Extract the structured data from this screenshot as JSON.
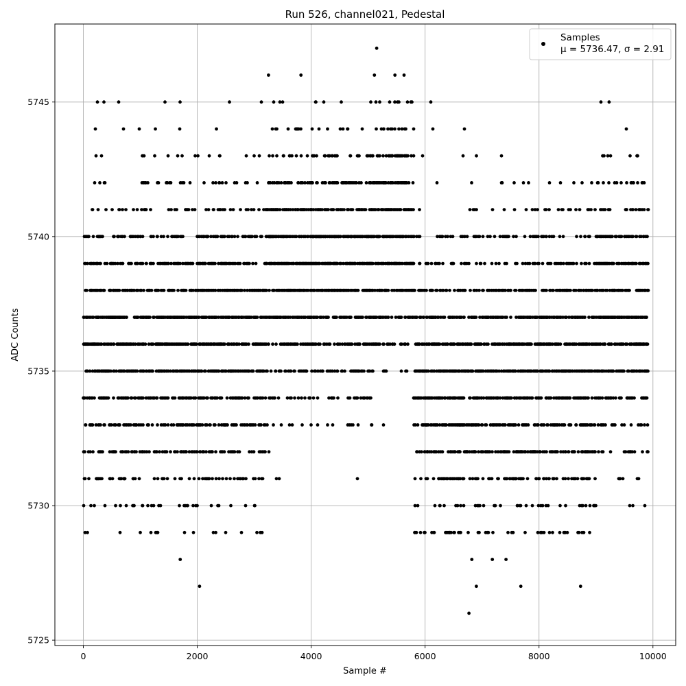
{
  "chart_data": {
    "type": "scatter",
    "title": "Run 526, channel021, Pedestal",
    "xlabel": "Sample #",
    "ylabel": "ADC Counts",
    "xlim": [
      -500,
      10400
    ],
    "ylim": [
      5724.8,
      5747.9
    ],
    "xticks": [
      0,
      2000,
      4000,
      6000,
      8000,
      10000
    ],
    "yticks": [
      5725,
      5730,
      5735,
      5740,
      5745
    ],
    "grid": true,
    "legend_position": "top-right",
    "series": [
      {
        "name": "Samples",
        "color": "#000000",
        "marker": "circle",
        "n_points": 10000
      }
    ],
    "legend": {
      "label": "Samples",
      "stats": "μ = 5736.47, σ = 2.91"
    },
    "segments": [
      {
        "x_range": [
          0,
          3200
        ],
        "mean": 5736.0,
        "sigma": 2.9
      },
      {
        "x_range": [
          3200,
          5100
        ],
        "mean": 5738.5,
        "sigma": 2.6
      },
      {
        "x_range": [
          5100,
          5800
        ],
        "mean": 5739.8,
        "sigma": 2.5
      },
      {
        "x_range": [
          5800,
          9000
        ],
        "mean": 5735.0,
        "sigma": 2.9
      },
      {
        "x_range": [
          9000,
          9920
        ],
        "mean": 5737.0,
        "sigma": 2.8
      }
    ],
    "outliers": [
      {
        "x": 5150,
        "y": 5747
      },
      {
        "x": 3250,
        "y": 5746
      },
      {
        "x": 3820,
        "y": 5746
      },
      {
        "x": 5110,
        "y": 5746
      },
      {
        "x": 5470,
        "y": 5746
      },
      {
        "x": 5630,
        "y": 5746
      },
      {
        "x": 620,
        "y": 5745
      },
      {
        "x": 9230,
        "y": 5745
      },
      {
        "x": 1700,
        "y": 5728
      },
      {
        "x": 6820,
        "y": 5728
      },
      {
        "x": 7180,
        "y": 5728
      },
      {
        "x": 7420,
        "y": 5728
      },
      {
        "x": 2040,
        "y": 5727
      },
      {
        "x": 6900,
        "y": 5727
      },
      {
        "x": 7680,
        "y": 5727
      },
      {
        "x": 8730,
        "y": 5727
      },
      {
        "x": 6770,
        "y": 5726
      }
    ]
  }
}
